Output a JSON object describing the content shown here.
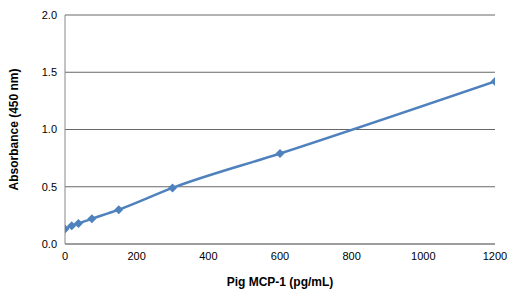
{
  "chart_data": {
    "type": "line",
    "x_label": "Pig MCP-1 (pg/mL)",
    "y_label": "Absorbance (450 nm)",
    "series": [
      {
        "name": "Pig MCP-1",
        "color": "#4f81bd",
        "marker": "diamond",
        "line_style": "solid",
        "x": [
          0,
          18.75,
          37.5,
          75,
          150,
          300,
          600,
          1200
        ],
        "values": [
          0.13,
          0.16,
          0.18,
          0.22,
          0.3,
          0.49,
          0.79,
          1.42
        ]
      }
    ],
    "xlim": [
      0,
      1200
    ],
    "xticks": [
      0,
      200,
      400,
      600,
      800,
      1000,
      1200
    ],
    "ylim": [
      0,
      2
    ],
    "yticks": [
      {
        "value": 0,
        "label": "0.0"
      },
      {
        "value": 0.5,
        "label": "0.5"
      },
      {
        "value": 1,
        "label": "1.0"
      },
      {
        "value": 1.5,
        "label": "1.5"
      },
      {
        "value": 2,
        "label": "2.0"
      }
    ],
    "grid": "y"
  }
}
